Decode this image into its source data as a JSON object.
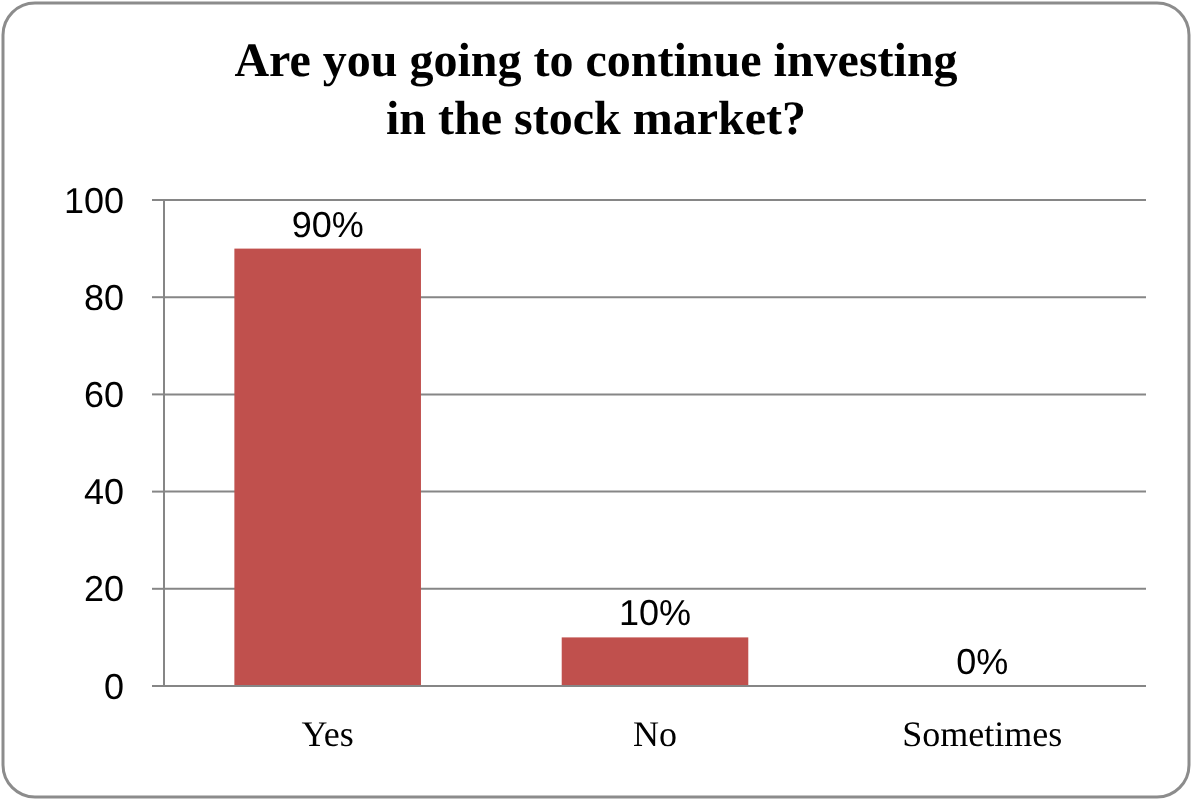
{
  "chart_data": {
    "type": "bar",
    "title": "Are you going to continue investing in the stock market?",
    "categories": [
      "Yes",
      "No",
      "Sometimes"
    ],
    "values": [
      90,
      10,
      0
    ],
    "value_labels": [
      "90%",
      "10%",
      "0%"
    ],
    "color": "#c0504d",
    "ylim": [
      0,
      100
    ],
    "yticks": [
      0,
      20,
      40,
      60,
      80,
      100
    ],
    "grid": "y"
  }
}
